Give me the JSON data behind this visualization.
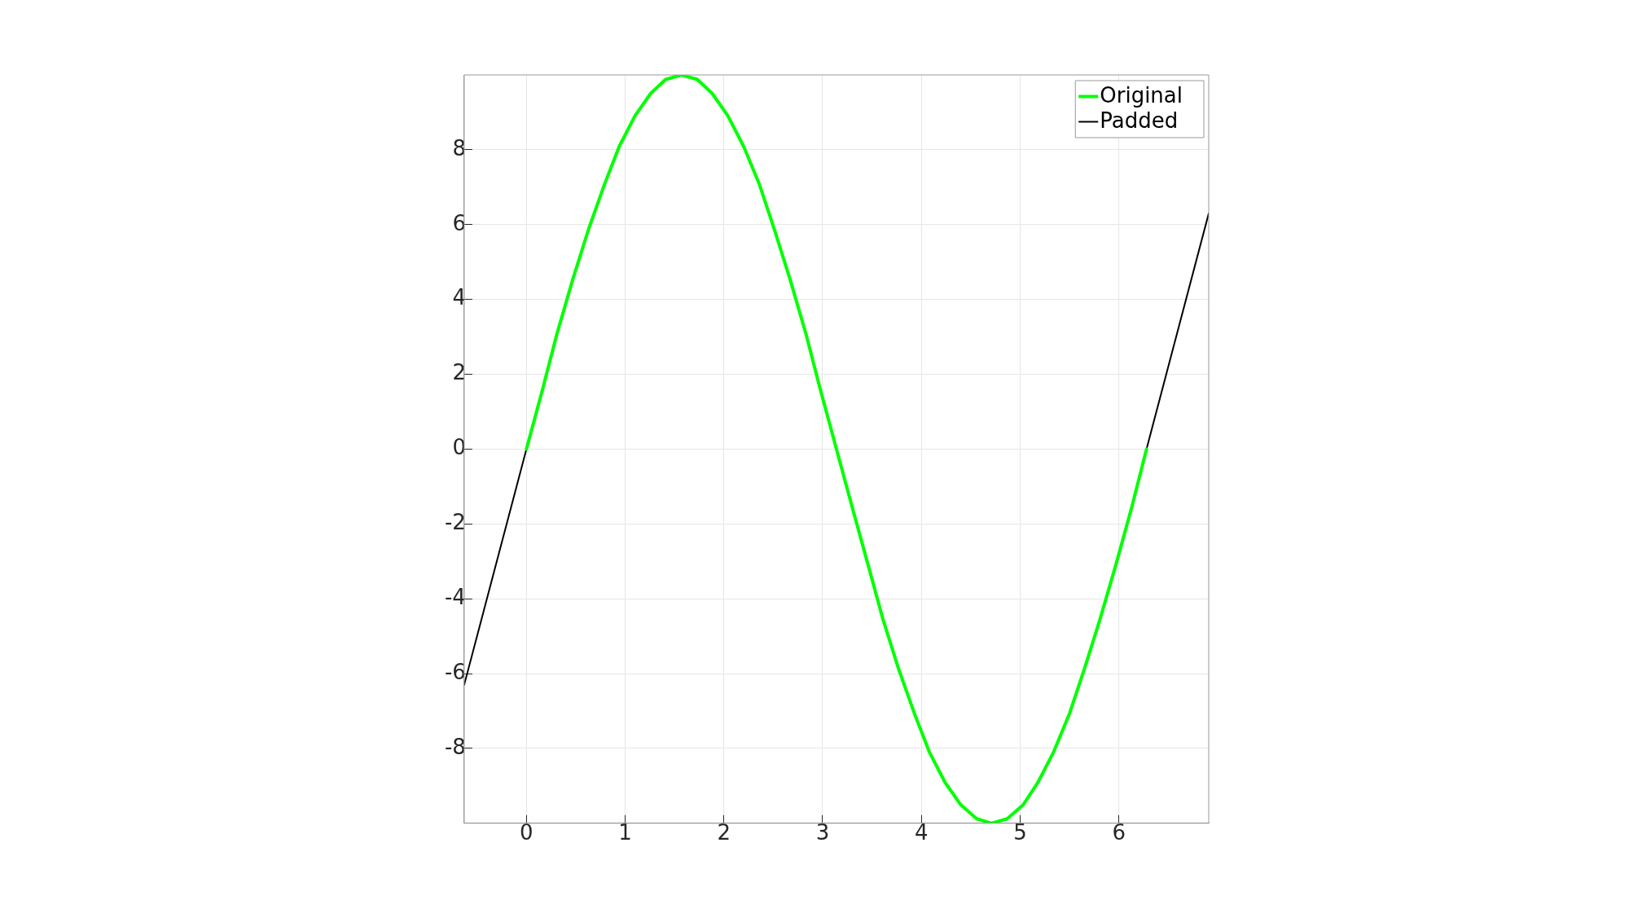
{
  "chart_data": {
    "type": "line",
    "xlim": [
      -0.63,
      6.91
    ],
    "ylim": [
      -10,
      10
    ],
    "xticks": [
      0,
      1,
      2,
      3,
      4,
      5,
      6
    ],
    "yticks": [
      -8,
      -6,
      -4,
      -2,
      0,
      2,
      4,
      6,
      8
    ],
    "grid": true,
    "legend": "top right",
    "line_style": "solid",
    "marker": "none",
    "series": [
      {
        "name": "Original",
        "color": "#00ff00",
        "x": [
          0,
          0.16,
          0.31,
          0.47,
          0.63,
          0.79,
          0.94,
          1.1,
          1.26,
          1.41,
          1.57,
          1.73,
          1.88,
          2.04,
          2.2,
          2.36,
          2.51,
          2.67,
          2.83,
          2.98,
          3.14,
          3.3,
          3.46,
          3.61,
          3.77,
          3.93,
          4.08,
          4.24,
          4.4,
          4.56,
          4.71,
          4.87,
          5.03,
          5.18,
          5.34,
          5.5,
          5.65,
          5.81,
          5.97,
          6.13,
          6.28
        ],
        "values": [
          0,
          1.56,
          3.09,
          4.54,
          5.88,
          7.07,
          8.09,
          8.91,
          9.51,
          9.88,
          10,
          9.88,
          9.51,
          8.91,
          8.09,
          7.07,
          5.88,
          4.54,
          3.09,
          1.56,
          0,
          -1.56,
          -3.09,
          -4.54,
          -5.88,
          -7.07,
          -8.09,
          -8.91,
          -9.51,
          -9.88,
          -10,
          -9.88,
          -9.51,
          -8.91,
          -8.09,
          -7.07,
          -5.88,
          -4.54,
          -3.09,
          -1.56,
          0
        ]
      },
      {
        "name": "Padded",
        "color": "#000000",
        "x": [
          -0.63,
          0,
          3.14,
          6.28,
          6.91
        ],
        "values": [
          -6.3,
          0,
          null,
          0,
          6.3
        ]
      }
    ]
  }
}
